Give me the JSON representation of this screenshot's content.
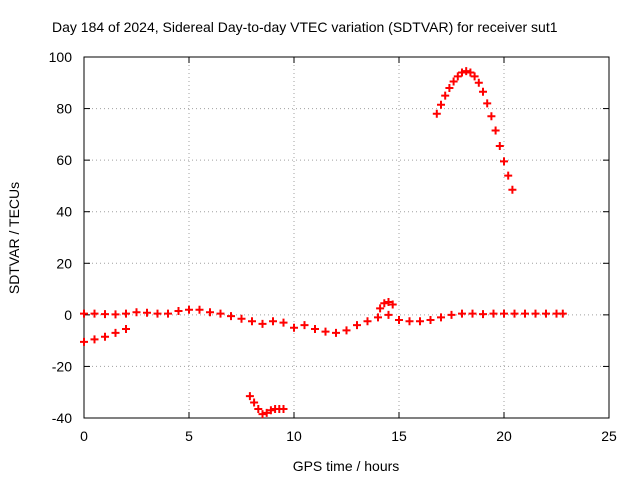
{
  "chart_data": {
    "type": "scatter",
    "title": "Day 184 of 2024, Sidereal Day-to-day VTEC variation (SDTVAR) for receiver sut1",
    "xlabel": "GPS time / hours",
    "ylabel": "SDTVAR / TECUs",
    "xlim": [
      0,
      25
    ],
    "ylim": [
      -40,
      100
    ],
    "x_ticks": [
      "0",
      "5",
      "10",
      "15",
      "20",
      "25"
    ],
    "y_ticks": [
      "-40",
      "-20",
      "0",
      "20",
      "40",
      "60",
      "80",
      "100"
    ],
    "grid": true,
    "marker": "plus",
    "color": "#ff0000",
    "series": [
      {
        "x": [
          0.0,
          0.5,
          1.0,
          1.5,
          2.0,
          2.5,
          3.0,
          3.5,
          4.0,
          4.5,
          5.0,
          5.5,
          6.0,
          6.5,
          7.0,
          7.5,
          8.0,
          8.5,
          9.0,
          9.5,
          10.0,
          10.5,
          11.0,
          11.5,
          12.0,
          12.5,
          13.0,
          13.5,
          14.0,
          14.5
        ],
        "y": [
          0.5,
          0.5,
          0.3,
          0.2,
          0.5,
          1.0,
          0.8,
          0.5,
          0.5,
          1.5,
          2.0,
          2.0,
          1.0,
          0.5,
          -0.5,
          -1.5,
          -2.5,
          -3.5,
          -2.5,
          -3.0,
          -5.0,
          -4.0,
          -5.5,
          -6.5,
          -7.0,
          -6.0,
          -4.0,
          -2.5,
          -1.0,
          0.0
        ]
      },
      {
        "x": [
          14.1,
          14.3,
          14.5,
          14.7
        ],
        "y": [
          2.5,
          4.5,
          5.0,
          4.0
        ]
      },
      {
        "x": [
          15.0,
          15.5,
          16.0,
          16.5,
          17.0,
          17.5,
          18.0,
          18.5,
          19.0,
          19.5,
          20.0,
          20.5,
          21.0,
          21.5,
          22.0,
          22.5,
          22.8
        ],
        "y": [
          -2.0,
          -2.5,
          -2.5,
          -2.0,
          -1.0,
          0.0,
          0.5,
          0.5,
          0.3,
          0.5,
          0.5,
          0.5,
          0.5,
          0.5,
          0.5,
          0.5,
          0.5
        ]
      },
      {
        "x": [
          0.0,
          0.5,
          1.0,
          1.5,
          2.0
        ],
        "y": [
          -10.5,
          -9.5,
          -8.5,
          -7.0,
          -5.5
        ]
      },
      {
        "x": [
          7.9,
          8.1,
          8.3,
          8.5,
          8.7,
          8.9,
          9.1,
          9.3,
          9.5
        ],
        "y": [
          -31.5,
          -34.0,
          -36.5,
          -38.5,
          -38.0,
          -37.0,
          -36.5,
          -36.5,
          -36.5
        ]
      },
      {
        "x": [
          16.8,
          17.0,
          17.2,
          17.4,
          17.6,
          17.8,
          18.0,
          18.2,
          18.4,
          18.6,
          18.8,
          19.0,
          19.2,
          19.4,
          19.6,
          19.8,
          20.0,
          20.2,
          20.4
        ],
        "y": [
          78.0,
          81.5,
          85.0,
          88.0,
          90.5,
          92.5,
          94.0,
          94.5,
          94.0,
          92.5,
          90.0,
          86.5,
          82.0,
          77.0,
          71.5,
          65.5,
          59.5,
          54.0,
          48.5
        ]
      }
    ]
  }
}
